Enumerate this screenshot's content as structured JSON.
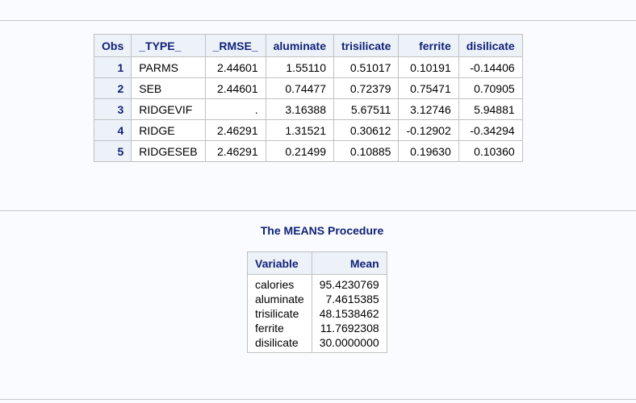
{
  "parms_table": {
    "headers": [
      "Obs",
      "_TYPE_",
      "_RMSE_",
      "aluminate",
      "trisilicate",
      "ferrite",
      "disilicate"
    ],
    "rows": [
      {
        "obs": "1",
        "type": "PARMS",
        "rmse": "2.44601",
        "aluminate": "1.55110",
        "trisilicate": "0.51017",
        "ferrite": "0.10191",
        "disilicate": "-0.14406"
      },
      {
        "obs": "2",
        "type": "SEB",
        "rmse": "2.44601",
        "aluminate": "0.74477",
        "trisilicate": "0.72379",
        "ferrite": "0.75471",
        "disilicate": "0.70905"
      },
      {
        "obs": "3",
        "type": "RIDGEVIF",
        "rmse": ".",
        "aluminate": "3.16388",
        "trisilicate": "5.67511",
        "ferrite": "3.12746",
        "disilicate": "5.94881"
      },
      {
        "obs": "4",
        "type": "RIDGE",
        "rmse": "2.46291",
        "aluminate": "1.31521",
        "trisilicate": "0.30612",
        "ferrite": "-0.12902",
        "disilicate": "-0.34294"
      },
      {
        "obs": "5",
        "type": "RIDGESEB",
        "rmse": "2.46291",
        "aluminate": "0.21499",
        "trisilicate": "0.10885",
        "ferrite": "0.19630",
        "disilicate": "0.10360"
      }
    ]
  },
  "means": {
    "title": "The MEANS Procedure",
    "headers": [
      "Variable",
      "Mean"
    ],
    "variables": [
      "calories",
      "aluminate",
      "trisilicate",
      "ferrite",
      "disilicate"
    ],
    "values": [
      "95.4230769",
      "7.4615385",
      "48.1538462",
      "11.7692308",
      "30.0000000"
    ]
  }
}
